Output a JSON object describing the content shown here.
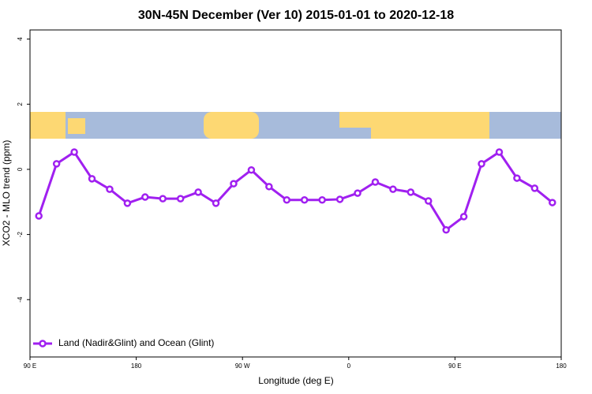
{
  "chart_data": {
    "type": "line",
    "title": "30N-45N December (Ver 10)   2015-01-01 to 2020-12-18",
    "x_label": "Longitude (deg E)",
    "y_label": "XCO2 - MLO trend (ppm)",
    "x": [
      97.5,
      112.5,
      127.5,
      142.5,
      157.5,
      172.5,
      187.5,
      202.5,
      217.5,
      232.5,
      247.5,
      262.5,
      277.5,
      292.5,
      307.5,
      322.5,
      337.5,
      352.5,
      367.5,
      382.5,
      397.5,
      412.5,
      427.5,
      442.5,
      457.5,
      472.5,
      487.5,
      502.5,
      517.5,
      532.5
    ],
    "series": [
      {
        "name": "Land (Nadir&Glint) and Ocean (Glint)",
        "color": "#a020f0",
        "values": [
          -1.43,
          0.17,
          0.53,
          -0.29,
          -0.61,
          -1.04,
          -0.85,
          -0.9,
          -0.9,
          -0.7,
          -1.04,
          -0.44,
          -0.02,
          -0.53,
          -0.94,
          -0.94,
          -0.94,
          -0.92,
          -0.73,
          -0.39,
          -0.61,
          -0.7,
          -0.97,
          -1.86,
          -1.45,
          0.17,
          0.53,
          -0.27,
          -0.58,
          -1.02
        ]
      }
    ],
    "xlim": [
      90,
      540
    ],
    "xticks": [
      {
        "value": 90,
        "label": "90 E"
      },
      {
        "value": 180,
        "label": "180"
      },
      {
        "value": 270,
        "label": "90 W"
      },
      {
        "value": 360,
        "label": "0"
      },
      {
        "value": 450,
        "label": "90 E"
      },
      {
        "value": 540,
        "label": "180"
      }
    ],
    "ylim": [
      -5.76,
      4.28
    ],
    "yticks": [
      -4,
      -2,
      0,
      2,
      4
    ],
    "legend": "bottom-left"
  }
}
